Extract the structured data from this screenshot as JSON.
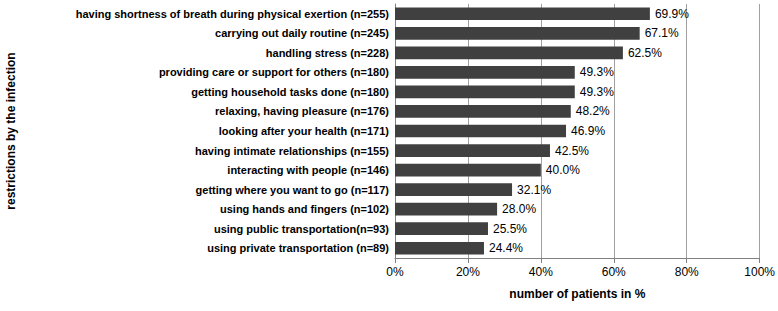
{
  "chart_data": {
    "type": "bar",
    "orientation": "horizontal",
    "x_label": "number of patients in %",
    "y_label": "restrictions by the infection",
    "categories": [
      "having shortness of breath during physical exertion (n=255)",
      "carrying out daily routine (n=245)",
      "handling stress (n=228)",
      "providing care or support for others (n=180)",
      "getting household tasks done (n=180)",
      "relaxing, having pleasure (n=176)",
      "looking after your health (n=171)",
      "having intimate relationships (n=155)",
      "interacting with people (n=146)",
      "getting where you want to go (n=117)",
      "using hands and fingers (n=102)",
      "using public transportation(n=93)",
      "using private transportation (n=89)"
    ],
    "values": [
      69.9,
      67.1,
      62.5,
      49.3,
      49.3,
      48.2,
      46.9,
      42.5,
      40.0,
      32.1,
      28.0,
      25.5,
      24.4
    ],
    "value_labels": [
      "69.9%",
      "67.1%",
      "62.5%",
      "49.3%",
      "49.3%",
      "48.2%",
      "46.9%",
      "42.5%",
      "40.0%",
      "32.1%",
      "28.0%",
      "25.5%",
      "24.4%"
    ],
    "data_labels": true,
    "color": "#404040",
    "xlim": [
      0,
      100
    ],
    "xticks": [
      {
        "value": 0,
        "label": "0%"
      },
      {
        "value": 20,
        "label": "20%"
      },
      {
        "value": 40,
        "label": "40%"
      },
      {
        "value": 60,
        "label": "60%"
      },
      {
        "value": 80,
        "label": "80%"
      },
      {
        "value": 100,
        "label": "100%"
      }
    ],
    "grid": true
  }
}
